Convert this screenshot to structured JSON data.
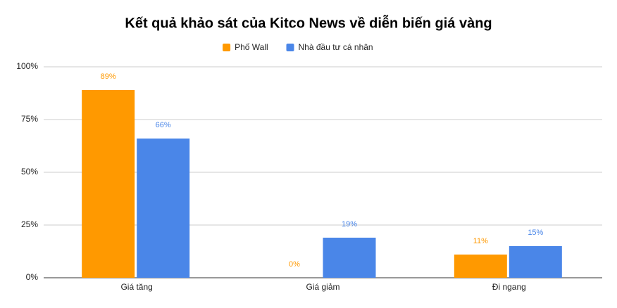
{
  "chart_data": {
    "type": "bar",
    "title": "Kết quả khảo sát của Kitco News về diễn biến giá vàng",
    "categories": [
      "Giá tăng",
      "Giá giảm",
      "Đi ngang"
    ],
    "series": [
      {
        "name": "Phố Wall",
        "color": "#ff9900",
        "values": [
          89,
          0,
          11
        ],
        "value_labels": [
          "89%",
          "0%",
          "11%"
        ]
      },
      {
        "name": "Nhà đầu tư cá nhân",
        "color": "#4a86e8",
        "values": [
          66,
          19,
          15
        ],
        "value_labels": [
          "66%",
          "19%",
          "15%"
        ]
      }
    ],
    "ylim": [
      0,
      100
    ],
    "yticks": [
      {
        "value": 0,
        "label": "0%"
      },
      {
        "value": 25,
        "label": "25%"
      },
      {
        "value": 50,
        "label": "50%"
      },
      {
        "value": 75,
        "label": "75%"
      },
      {
        "value": 100,
        "label": "100%"
      }
    ],
    "grid": true,
    "legend": "top"
  }
}
